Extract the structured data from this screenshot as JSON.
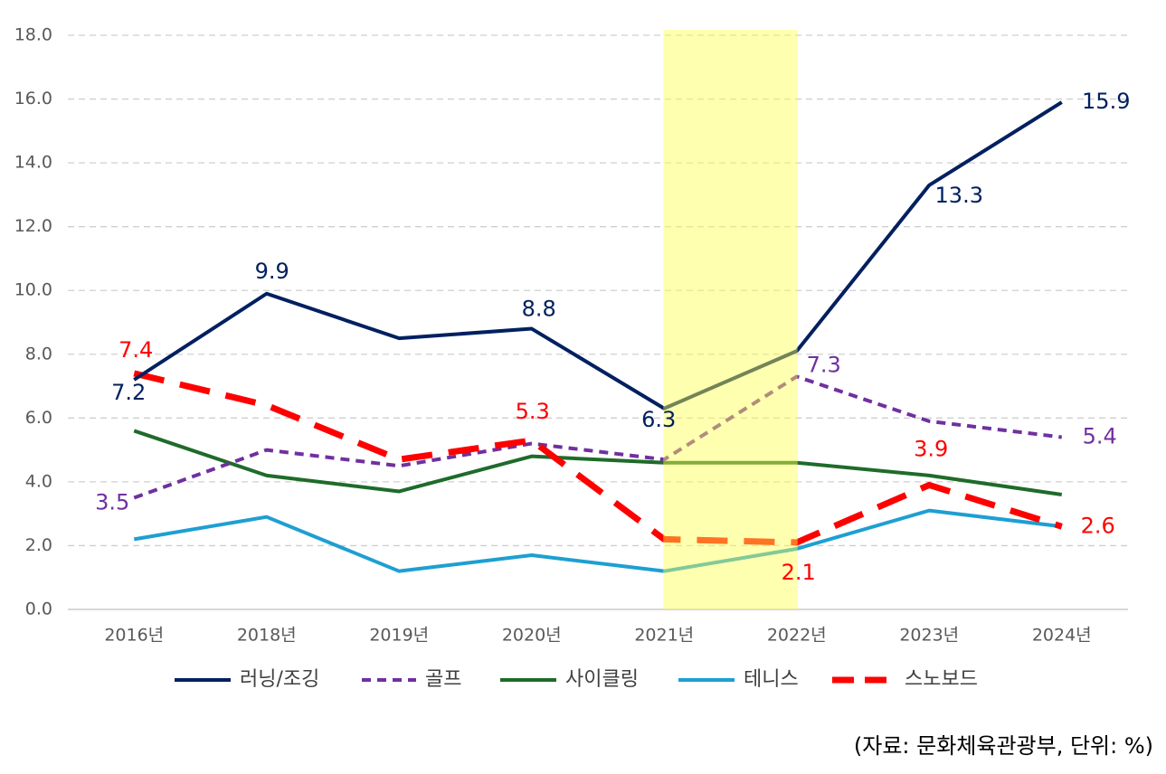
{
  "chart_data": {
    "type": "line",
    "categories": [
      "2016년",
      "2018년",
      "2019년",
      "2020년",
      "2021년",
      "2022년",
      "2023년",
      "2024년"
    ],
    "series": [
      {
        "name": "러닝/조깅",
        "color": "#002060",
        "line_style": "solid",
        "values": [
          7.2,
          9.9,
          8.5,
          8.8,
          6.3,
          8.1,
          13.3,
          15.9
        ],
        "value_labels": [
          "7.2",
          "9.9",
          null,
          "8.8",
          "6.3",
          null,
          "13.3",
          "15.9"
        ]
      },
      {
        "name": "골프",
        "color": "#7030a0",
        "line_style": "dashed",
        "values": [
          3.5,
          5.0,
          4.5,
          5.2,
          4.7,
          7.3,
          5.9,
          5.4
        ],
        "value_labels": [
          "3.5",
          null,
          null,
          null,
          null,
          "7.3",
          null,
          "5.4"
        ]
      },
      {
        "name": "사이클링",
        "color": "#1f6b2a",
        "line_style": "solid",
        "values": [
          5.6,
          4.2,
          3.7,
          4.8,
          4.6,
          4.6,
          4.2,
          3.6
        ]
      },
      {
        "name": "테니스",
        "color": "#1e9fd2",
        "line_style": "solid",
        "values": [
          2.2,
          2.9,
          1.2,
          1.7,
          1.2,
          1.9,
          3.1,
          2.6
        ]
      },
      {
        "name": "스노보드",
        "color": "#ff0000",
        "line_style": "dashed",
        "values": [
          7.4,
          6.4,
          4.7,
          5.3,
          2.2,
          2.1,
          3.9,
          2.6
        ],
        "value_labels": [
          "7.4",
          null,
          null,
          "5.3",
          null,
          "2.1",
          "3.9",
          "2.6"
        ]
      }
    ],
    "ylim": [
      0,
      18
    ],
    "yticks": [
      {
        "value": 0,
        "label": "0.0"
      },
      {
        "value": 2,
        "label": "2.0"
      },
      {
        "value": 4,
        "label": "4.0"
      },
      {
        "value": 6,
        "label": "6.0"
      },
      {
        "value": 8,
        "label": "8.0"
      },
      {
        "value": 10,
        "label": "10.0"
      },
      {
        "value": 12,
        "label": "12.0"
      },
      {
        "value": 14,
        "label": "14.0"
      },
      {
        "value": 16,
        "label": "16.0"
      },
      {
        "value": 18,
        "label": "18.0"
      }
    ],
    "grid": true,
    "legend": "bottom",
    "note": "(자료: 문화체육관광부, 단위: %)"
  }
}
